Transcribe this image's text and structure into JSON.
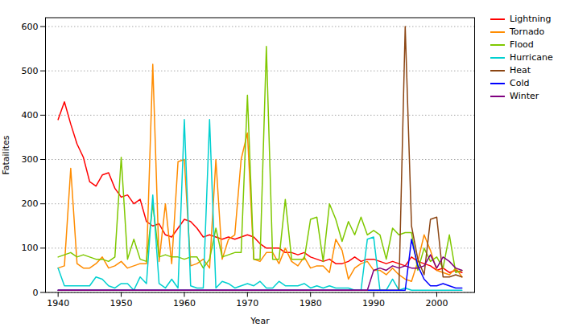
{
  "chart_data": {
    "type": "line",
    "xlabel": "Year",
    "ylabel": "Fatailites",
    "xlim": [
      1938,
      2006
    ],
    "ylim": [
      0,
      620
    ],
    "xticks": [
      1940,
      1950,
      1960,
      1970,
      1980,
      1990,
      2000
    ],
    "yticks": [
      0,
      100,
      200,
      300,
      400,
      500,
      600
    ],
    "grid": true,
    "legend": "upper right",
    "x": [
      1940,
      1941,
      1942,
      1943,
      1944,
      1945,
      1946,
      1947,
      1948,
      1949,
      1950,
      1951,
      1952,
      1953,
      1954,
      1955,
      1956,
      1957,
      1958,
      1959,
      1960,
      1961,
      1962,
      1963,
      1964,
      1965,
      1966,
      1967,
      1968,
      1969,
      1970,
      1971,
      1972,
      1973,
      1974,
      1975,
      1976,
      1977,
      1978,
      1979,
      1980,
      1981,
      1982,
      1983,
      1984,
      1985,
      1986,
      1987,
      1988,
      1989,
      1990,
      1991,
      1992,
      1993,
      1994,
      1995,
      1996,
      1997,
      1998,
      1999,
      2000,
      2001,
      2002,
      2003,
      2004
    ],
    "series": [
      {
        "name": "Lightning",
        "color": "#ff0000",
        "values": [
          390,
          430,
          380,
          335,
          305,
          250,
          240,
          265,
          270,
          235,
          215,
          220,
          200,
          210,
          160,
          150,
          155,
          130,
          125,
          145,
          165,
          160,
          145,
          125,
          130,
          125,
          120,
          125,
          120,
          125,
          130,
          125,
          110,
          100,
          100,
          100,
          90,
          90,
          85,
          90,
          80,
          75,
          70,
          75,
          65,
          65,
          70,
          80,
          70,
          75,
          75,
          70,
          65,
          70,
          65,
          60,
          80,
          70,
          65,
          60,
          50,
          55,
          45,
          50,
          45
        ]
      },
      {
        "name": "Tornado",
        "color": "#ff8c00",
        "values": [
          55,
          60,
          280,
          65,
          55,
          55,
          65,
          80,
          55,
          60,
          70,
          55,
          60,
          65,
          65,
          515,
          70,
          200,
          65,
          295,
          300,
          60,
          65,
          75,
          55,
          300,
          75,
          120,
          130,
          300,
          360,
          75,
          70,
          90,
          90,
          65,
          100,
          70,
          60,
          80,
          55,
          60,
          60,
          45,
          120,
          95,
          30,
          55,
          65,
          70,
          50,
          50,
          40,
          55,
          40,
          30,
          25,
          70,
          130,
          95,
          50,
          45,
          40,
          55,
          35
        ]
      },
      {
        "name": "Flood",
        "color": "#7fc800",
        "values": [
          80,
          85,
          90,
          80,
          85,
          80,
          75,
          75,
          70,
          80,
          305,
          75,
          120,
          75,
          70,
          200,
          80,
          85,
          80,
          80,
          75,
          80,
          80,
          55,
          75,
          145,
          80,
          85,
          90,
          90,
          445,
          75,
          75,
          555,
          75,
          75,
          210,
          75,
          75,
          75,
          165,
          170,
          70,
          200,
          165,
          115,
          160,
          130,
          170,
          130,
          140,
          130,
          75,
          145,
          130,
          135,
          135,
          50,
          100,
          70,
          80,
          55,
          130,
          45,
          50
        ]
      },
      {
        "name": "Hurricane",
        "color": "#00d0d0",
        "values": [
          55,
          15,
          15,
          15,
          15,
          15,
          35,
          30,
          15,
          10,
          20,
          20,
          5,
          35,
          20,
          220,
          20,
          10,
          30,
          10,
          390,
          15,
          10,
          10,
          390,
          10,
          25,
          20,
          10,
          15,
          20,
          15,
          25,
          10,
          10,
          25,
          15,
          15,
          15,
          20,
          10,
          15,
          10,
          15,
          10,
          10,
          10,
          5,
          5,
          120,
          125,
          5,
          5,
          30,
          5,
          10,
          5,
          5,
          5,
          5,
          5,
          5,
          5,
          5,
          5
        ]
      },
      {
        "name": "Heat",
        "color": "#8b4513",
        "values": [
          5,
          5,
          5,
          5,
          5,
          5,
          5,
          5,
          5,
          5,
          5,
          5,
          5,
          5,
          5,
          5,
          5,
          5,
          5,
          5,
          5,
          5,
          5,
          5,
          5,
          5,
          5,
          5,
          5,
          5,
          5,
          5,
          5,
          5,
          5,
          5,
          5,
          5,
          5,
          5,
          5,
          5,
          5,
          5,
          5,
          5,
          5,
          5,
          5,
          5,
          5,
          5,
          5,
          5,
          5,
          600,
          150,
          75,
          40,
          165,
          170,
          35,
          35,
          40,
          35
        ]
      },
      {
        "name": "Cold",
        "color": "#0000ff",
        "values": [
          5,
          5,
          5,
          5,
          5,
          5,
          5,
          5,
          5,
          5,
          5,
          5,
          5,
          5,
          5,
          5,
          5,
          5,
          5,
          5,
          5,
          5,
          5,
          5,
          5,
          5,
          5,
          5,
          5,
          5,
          5,
          5,
          5,
          5,
          5,
          5,
          5,
          5,
          5,
          5,
          5,
          5,
          5,
          5,
          5,
          5,
          5,
          5,
          5,
          5,
          5,
          5,
          5,
          5,
          5,
          5,
          120,
          60,
          30,
          15,
          15,
          20,
          15,
          10,
          10
        ]
      },
      {
        "name": "Winter",
        "color": "#800080",
        "values": [
          5,
          5,
          5,
          5,
          5,
          5,
          5,
          5,
          5,
          5,
          5,
          5,
          5,
          5,
          5,
          5,
          5,
          5,
          5,
          5,
          5,
          5,
          5,
          5,
          5,
          5,
          5,
          5,
          5,
          5,
          5,
          5,
          5,
          5,
          5,
          5,
          5,
          5,
          5,
          5,
          5,
          5,
          5,
          5,
          5,
          5,
          5,
          5,
          5,
          5,
          50,
          55,
          50,
          60,
          55,
          60,
          55,
          55,
          60,
          85,
          55,
          80,
          70,
          55,
          50
        ]
      }
    ]
  }
}
